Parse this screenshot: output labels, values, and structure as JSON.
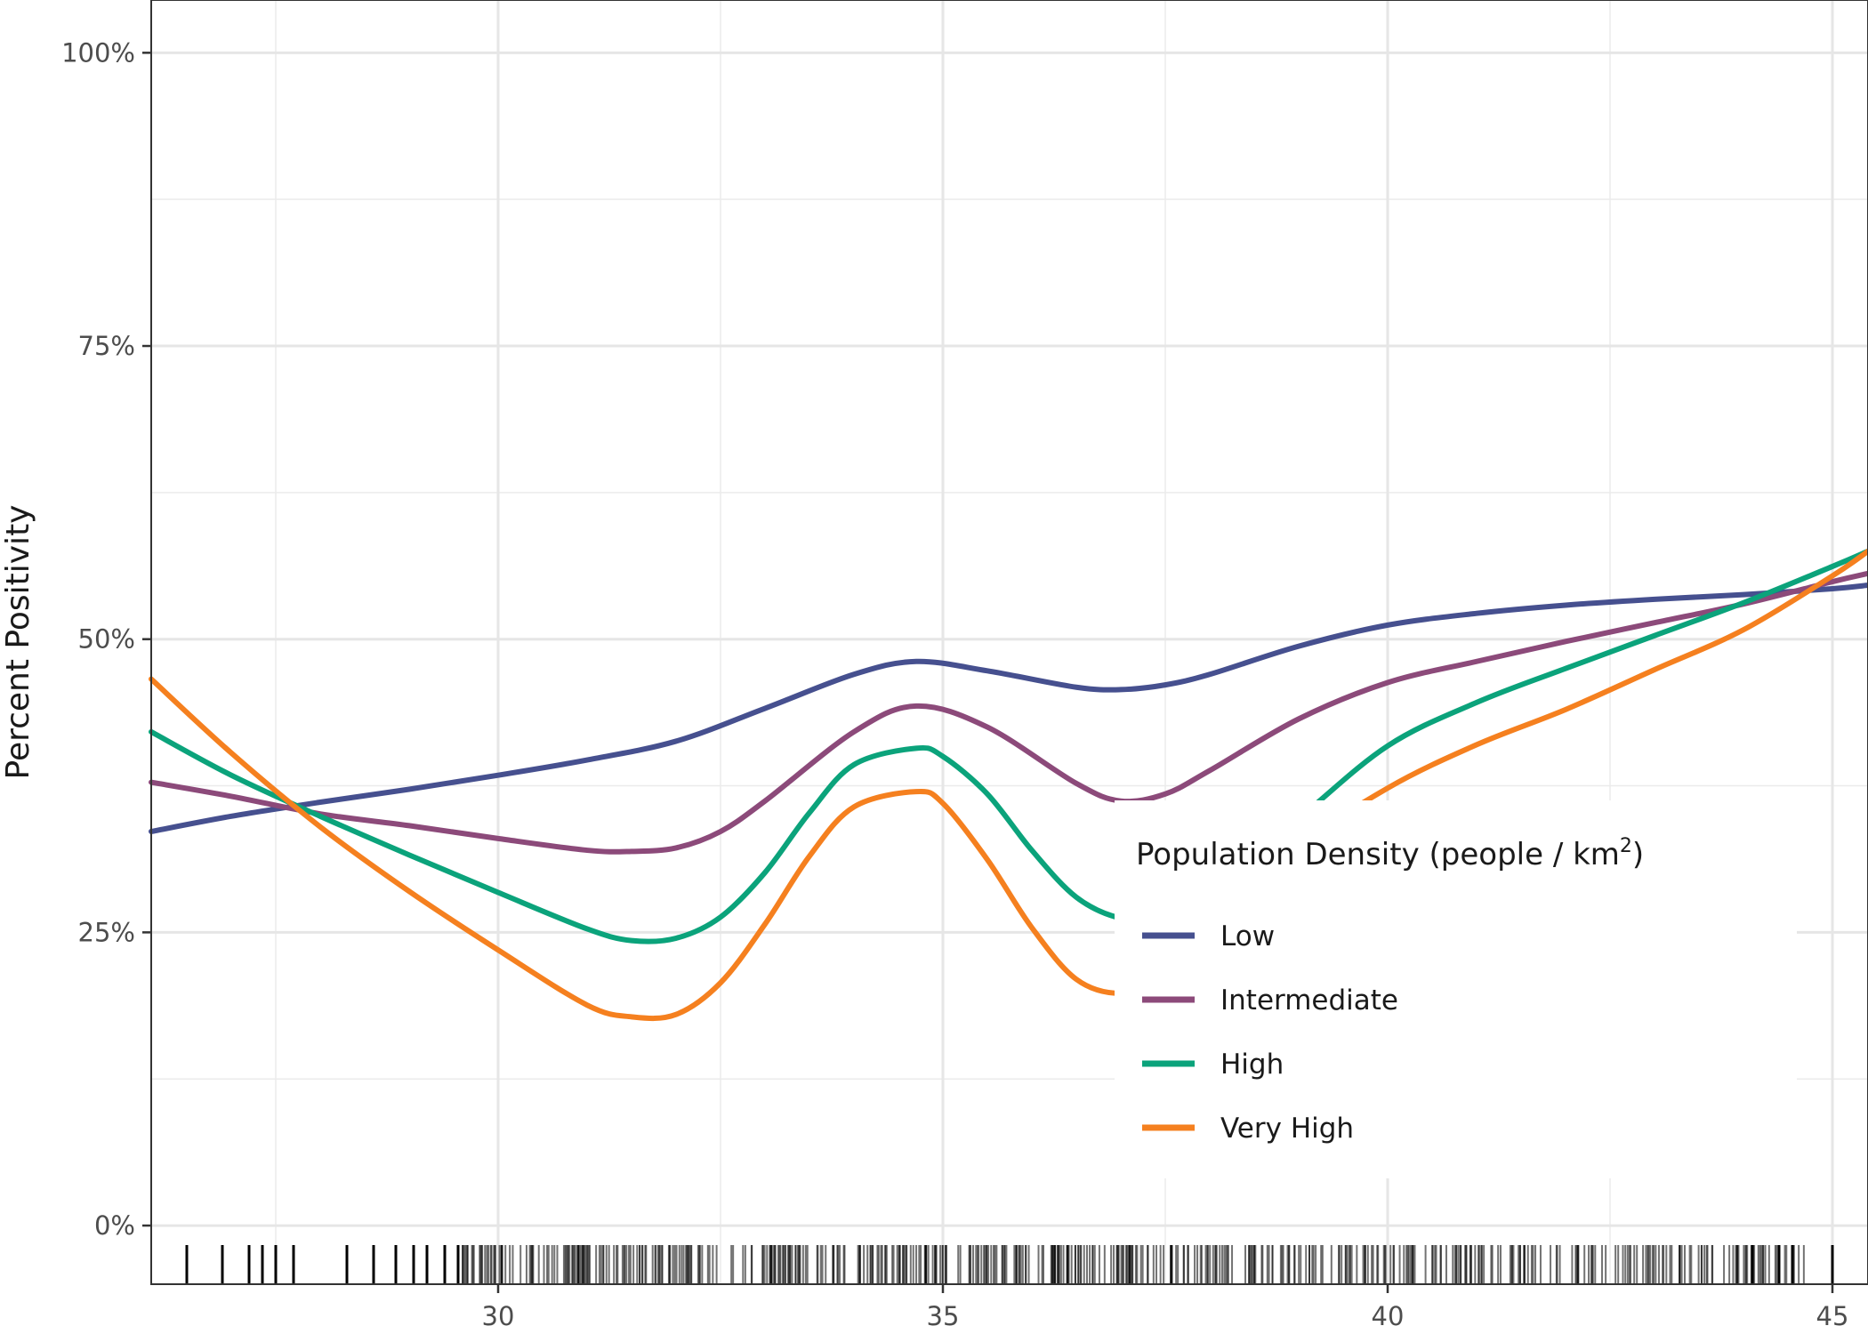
{
  "chart_data": {
    "type": "line",
    "title": "",
    "xlabel": "",
    "ylabel": "Percent Positivity",
    "xlim": [
      26.1,
      45.4
    ],
    "ylim": [
      -0.05,
      1.045
    ],
    "x_ticks": [
      30,
      35,
      40,
      45
    ],
    "x_tick_labels": [
      "30",
      "35",
      "40",
      "45"
    ],
    "y_ticks": [
      0,
      0.25,
      0.5,
      0.75,
      1.0
    ],
    "y_tick_labels": [
      "0%",
      "25%",
      "50%",
      "75%",
      "100%"
    ],
    "grid": true,
    "legend": {
      "title": "Population Density (people / km",
      "title_superscript": "2",
      "title_suffix": ")",
      "placement": "bottom-right inside"
    },
    "series": [
      {
        "name": "Low",
        "color": "#46508F",
        "x": [
          26.1,
          27.0,
          28.0,
          29.0,
          30.0,
          31.0,
          32.0,
          33.0,
          34.0,
          34.7,
          35.5,
          36.5,
          37.0,
          37.5,
          38.0,
          39.0,
          40.0,
          41.0,
          42.0,
          43.0,
          44.0,
          45.0,
          45.4
        ],
        "y": [
          0.336,
          0.349,
          0.361,
          0.372,
          0.384,
          0.397,
          0.413,
          0.441,
          0.47,
          0.481,
          0.473,
          0.459,
          0.457,
          0.461,
          0.47,
          0.494,
          0.512,
          0.522,
          0.529,
          0.534,
          0.538,
          0.543,
          0.546
        ]
      },
      {
        "name": "Intermediate",
        "color": "#8C4A7A",
        "x": [
          26.1,
          27.0,
          28.0,
          29.0,
          30.0,
          31.0,
          31.5,
          32.0,
          32.5,
          33.0,
          34.0,
          34.7,
          35.5,
          36.5,
          37.0,
          37.5,
          38.0,
          39.0,
          40.0,
          41.0,
          42.0,
          43.0,
          44.0,
          45.0,
          45.4
        ],
        "y": [
          0.378,
          0.366,
          0.351,
          0.341,
          0.33,
          0.32,
          0.319,
          0.322,
          0.336,
          0.362,
          0.421,
          0.443,
          0.425,
          0.377,
          0.362,
          0.368,
          0.388,
          0.432,
          0.463,
          0.481,
          0.498,
          0.514,
          0.53,
          0.549,
          0.556
        ]
      },
      {
        "name": "High",
        "color": "#0BA37B",
        "x": [
          26.1,
          27.0,
          28.0,
          29.0,
          30.0,
          31.0,
          31.5,
          32.0,
          32.5,
          33.0,
          33.5,
          34.0,
          34.7,
          35.0,
          35.5,
          36.0,
          36.5,
          37.0,
          37.5,
          38.0,
          39.0,
          40.0,
          41.0,
          42.0,
          43.0,
          44.0,
          45.0,
          45.4
        ],
        "y": [
          0.421,
          0.384,
          0.349,
          0.316,
          0.284,
          0.253,
          0.243,
          0.245,
          0.263,
          0.301,
          0.352,
          0.393,
          0.407,
          0.4,
          0.368,
          0.32,
          0.28,
          0.262,
          0.262,
          0.285,
          0.347,
          0.409,
          0.446,
          0.475,
          0.503,
          0.531,
          0.562,
          0.575
        ]
      },
      {
        "name": "Very High",
        "color": "#F5801F",
        "x": [
          26.1,
          27.0,
          28.0,
          29.0,
          30.0,
          31.0,
          31.5,
          32.0,
          32.5,
          33.0,
          33.5,
          34.0,
          34.7,
          35.0,
          35.5,
          36.0,
          36.5,
          37.0,
          37.5,
          38.0,
          39.0,
          40.0,
          41.0,
          42.0,
          43.0,
          44.0,
          45.0,
          45.4
        ],
        "y": [
          0.466,
          0.403,
          0.34,
          0.285,
          0.235,
          0.188,
          0.178,
          0.18,
          0.207,
          0.257,
          0.315,
          0.357,
          0.37,
          0.36,
          0.312,
          0.254,
          0.21,
          0.198,
          0.21,
          0.245,
          0.322,
          0.373,
          0.41,
          0.44,
          0.474,
          0.508,
          0.554,
          0.575
        ]
      }
    ]
  }
}
